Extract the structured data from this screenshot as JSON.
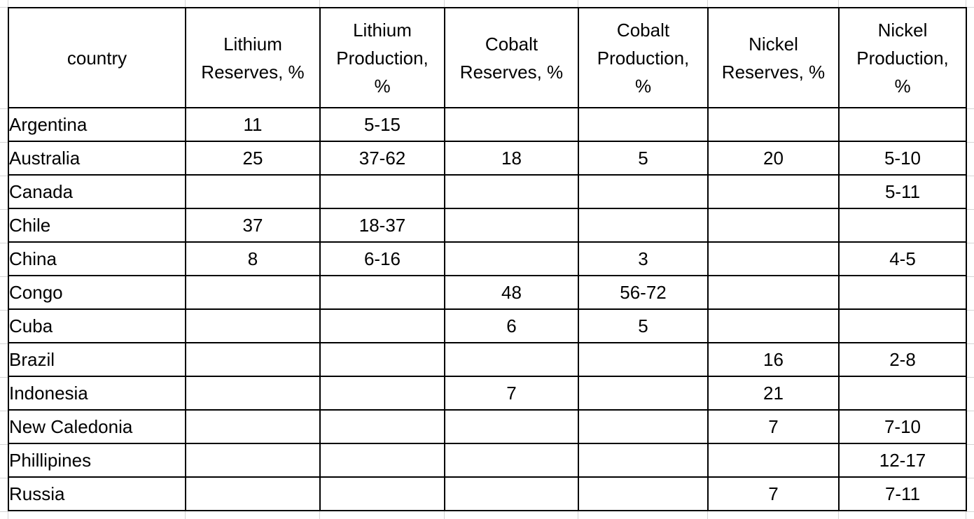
{
  "table": {
    "headers": [
      {
        "id": "country",
        "lines": [
          "country"
        ]
      },
      {
        "id": "lithium-reserves",
        "lines": [
          "Lithium",
          "Reserves, %"
        ]
      },
      {
        "id": "lithium-production",
        "lines": [
          "Lithium",
          "Production,",
          "%"
        ]
      },
      {
        "id": "cobalt-reserves",
        "lines": [
          "Cobalt",
          "Reserves, %"
        ]
      },
      {
        "id": "cobalt-production",
        "lines": [
          "Cobalt",
          "Production,",
          "%"
        ]
      },
      {
        "id": "nickel-reserves",
        "lines": [
          "Nickel",
          "Reserves, %"
        ]
      },
      {
        "id": "nickel-production",
        "lines": [
          "Nickel",
          "Production,",
          "%"
        ]
      }
    ],
    "rows": [
      {
        "country": "Argentina",
        "values": [
          "11",
          "5-15",
          "",
          "",
          "",
          ""
        ]
      },
      {
        "country": "Australia",
        "values": [
          "25",
          "37-62",
          "18",
          "5",
          "20",
          "5-10"
        ]
      },
      {
        "country": "Canada",
        "values": [
          "",
          "",
          "",
          "",
          "",
          "5-11"
        ]
      },
      {
        "country": "Chile",
        "values": [
          "37",
          "18-37",
          "",
          "",
          "",
          ""
        ]
      },
      {
        "country": "China",
        "values": [
          "8",
          "6-16",
          "",
          "3",
          "",
          "4-5"
        ]
      },
      {
        "country": "Congo",
        "values": [
          "",
          "",
          "48",
          "56-72",
          "",
          ""
        ]
      },
      {
        "country": "Cuba",
        "values": [
          "",
          "",
          "6",
          "5",
          "",
          ""
        ]
      },
      {
        "country": "Brazil",
        "values": [
          "",
          "",
          "",
          "",
          "16",
          "2-8"
        ]
      },
      {
        "country": "Indonesia",
        "values": [
          "",
          "",
          "7",
          "",
          "21",
          ""
        ]
      },
      {
        "country": "New Caledonia",
        "values": [
          "",
          "",
          "",
          "",
          "7",
          "7-10"
        ]
      },
      {
        "country": "Phillipines",
        "values": [
          "",
          "",
          "",
          "",
          "",
          "12-17"
        ]
      },
      {
        "country": "Russia",
        "values": [
          "",
          "",
          "",
          "",
          "7",
          "7-11"
        ]
      }
    ],
    "colors": {
      "table_border": "#000000",
      "sheet_gridline": "#d4d4d4",
      "text": "#000000",
      "background": "#ffffff"
    }
  }
}
